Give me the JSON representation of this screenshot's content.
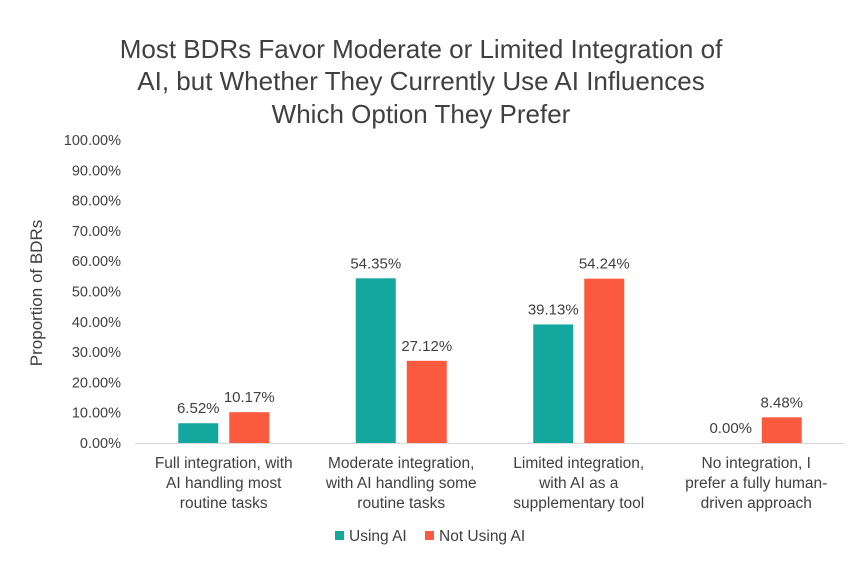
{
  "chart_data": {
    "type": "bar",
    "title": "Most BDRs Favor Moderate or Limited Integration of AI, but Whether They Currently Use AI Influences Which Option They Prefer",
    "title_lines": [
      "Most BDRs Favor Moderate or Limited Integration of",
      "AI, but Whether They Currently Use AI Influences",
      "Which Option They Prefer"
    ],
    "ylabel": "Proportion of BDRs",
    "xlabel": "",
    "ylim": [
      0,
      100
    ],
    "y_ticks": [
      "0.00%",
      "10.00%",
      "20.00%",
      "30.00%",
      "40.00%",
      "50.00%",
      "60.00%",
      "70.00%",
      "80.00%",
      "90.00%",
      "100.00%"
    ],
    "categories": [
      [
        "Full integration, with",
        "AI handling most",
        "routine tasks"
      ],
      [
        "Moderate integration,",
        "with AI handling some",
        "routine tasks"
      ],
      [
        "Limited integration,",
        "with AI as a",
        "supplementary tool"
      ],
      [
        "No integration, I",
        "prefer a fully human-",
        "driven approach"
      ]
    ],
    "series": [
      {
        "name": "Using AI",
        "color": "#14a79d",
        "values": [
          6.52,
          54.35,
          39.13,
          0.0
        ],
        "labels": [
          "6.52%",
          "54.35%",
          "39.13%",
          "0.00%"
        ]
      },
      {
        "name": "Not Using AI",
        "color": "#fc5a3f",
        "values": [
          10.17,
          27.12,
          54.24,
          8.48
        ],
        "labels": [
          "10.17%",
          "27.12%",
          "54.24%",
          "8.48%"
        ]
      }
    ],
    "legend_position": "bottom",
    "grid": false
  }
}
